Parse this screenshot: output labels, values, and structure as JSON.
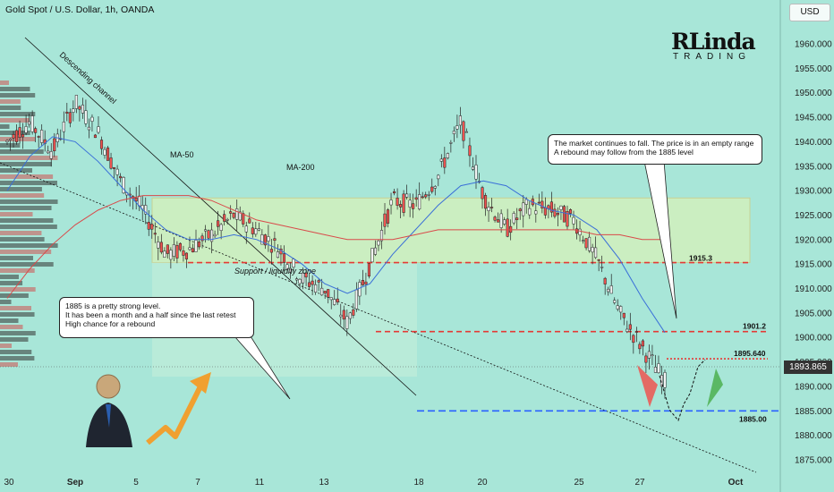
{
  "header": {
    "symbol_title": "Gold Spot / U.S. Dollar, 1h, OANDA",
    "currency": "USD",
    "brand_main": "RLinda",
    "brand_sub": "TRADING"
  },
  "colors": {
    "background": "#a8e6d8",
    "bull_candle": "#26a69a",
    "bear_candle": "#ef5350",
    "candle_body": "#1a1a1a",
    "ma50": "#3a6fd8",
    "ma200": "#d94a4a",
    "zone_fill": "#e8f5b0",
    "zone_border": "#e0c060",
    "red_level": "#e53935",
    "blue_level": "#2962ff",
    "price_tag": "#333333"
  },
  "current_price": "1893.865",
  "notes": {
    "top_right": [
      "The market continues to fall. The price is in an empty range",
      "A rebound may follow from the 1885 level"
    ],
    "left": [
      "1885 is a pretty strong level.",
      "It has been a month and a half since the last retest",
      "High chance for a rebound"
    ]
  },
  "chart_data": {
    "type": "line",
    "title": "Gold Spot / U.S. Dollar, 1h, OANDA",
    "xlabel": "",
    "ylabel": "",
    "ylim": [
      1872,
      1967
    ],
    "y_ticks": [
      "1960.000",
      "1955.000",
      "1950.000",
      "1945.000",
      "1940.000",
      "1935.000",
      "1930.000",
      "1925.000",
      "1920.000",
      "1915.000",
      "1910.000",
      "1905.000",
      "1900.000",
      "1895.000",
      "1890.000",
      "1885.000",
      "1880.000",
      "1875.000"
    ],
    "x_ticks": [
      "30",
      "Sep",
      "5",
      "7",
      "11",
      "13",
      "18",
      "20",
      "25",
      "27",
      "Oct"
    ],
    "grid": false,
    "series": [
      {
        "name": "Price",
        "x_days": [
          0,
          1,
          2,
          3,
          4,
          5,
          6,
          7,
          8,
          9,
          10,
          11,
          12,
          13,
          14,
          15,
          16,
          17,
          18,
          19,
          20,
          21,
          22,
          23,
          24,
          25,
          26,
          27,
          28,
          29
        ],
        "values": [
          1940,
          1944,
          1938,
          1948,
          1942,
          1932,
          1926,
          1917,
          1918,
          1921,
          1925,
          1922,
          1918,
          1912,
          1910,
          1903,
          1915,
          1928,
          1927,
          1933,
          1944,
          1929,
          1922,
          1927,
          1926,
          1924,
          1916,
          1905,
          1898,
          1891
        ]
      },
      {
        "name": "MA-50",
        "values": [
          1930,
          1937,
          1941,
          1940,
          1936,
          1931,
          1926,
          1922,
          1920,
          1920,
          1921,
          1920,
          1918,
          1915,
          1911,
          1909,
          1911,
          1917,
          1922,
          1927,
          1931,
          1932,
          1931,
          1928,
          1926,
          1925,
          1922,
          1916,
          1908,
          1901
        ]
      },
      {
        "name": "MA-200",
        "values": [
          1908,
          1914,
          1919,
          1923,
          1926,
          1928,
          1929,
          1929,
          1929,
          1928,
          1926,
          1924,
          1923,
          1922,
          1921,
          1920,
          1920,
          1920,
          1921,
          1922,
          1922,
          1922,
          1922,
          1922,
          1922,
          1922,
          1921,
          1921,
          1920,
          1920
        ]
      }
    ],
    "levels": [
      {
        "name": "1915.3",
        "value": 1915.3,
        "style": "red-dashed"
      },
      {
        "name": "1901.2",
        "value": 1901.2,
        "style": "red-dashed"
      },
      {
        "name": "1895.640",
        "value": 1895.64,
        "style": "red-dotted"
      },
      {
        "name": "1885.00",
        "value": 1885.0,
        "style": "blue-dashed"
      }
    ],
    "zone": {
      "label": "Support / liquidity zone",
      "low": 1915.3,
      "high": 1928.5
    },
    "annotations": [
      "Descending channel",
      "MA-50",
      "MA-200",
      "Support / liquidity zone"
    ]
  }
}
